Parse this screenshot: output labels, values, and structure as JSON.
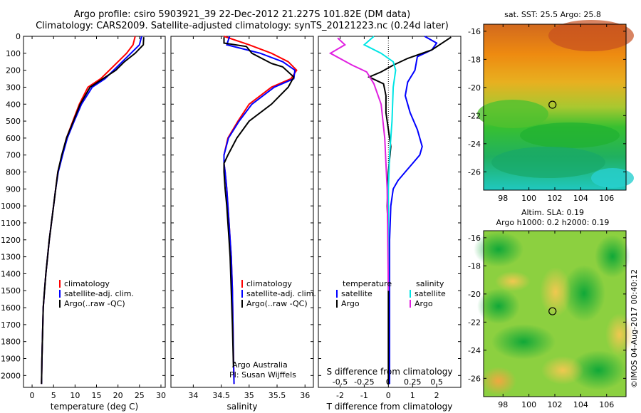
{
  "header": {
    "title_line1": "Argo profile: csiro 5903921_39 22-Dec-2012 21.227S 101.82E (DM data)",
    "title_line2": "Climatology: CARS2009. Satellite-adjusted climatology: synTS_20121223.nc (0.24d later)"
  },
  "colors": {
    "climatology": "#ff0000",
    "satellite": "#0000ff",
    "argo": "#000000",
    "sal_satellite": "#00e5e5",
    "sal_argo": "#e020e0"
  },
  "legend": {
    "climatology": "climatology",
    "satellite_adj": "satellite-adj. clim.",
    "argo": "Argo(..raw -QC)",
    "diff_temperature": "temperature",
    "diff_salinity": "salinity",
    "diff_satellite": "satellite",
    "diff_argo": "Argo"
  },
  "annotations": {
    "institution": "Argo Australia",
    "pi": "PI: Susan Wijffels"
  },
  "chart_data": [
    {
      "type": "line",
      "xlabel": "temperature (deg C)",
      "ylabel": "",
      "xlim": [
        -2,
        31
      ],
      "ylim": [
        2070,
        0
      ],
      "xticks": [
        0,
        5,
        10,
        15,
        20,
        25,
        30
      ],
      "yticks": [
        0,
        100,
        200,
        300,
        400,
        500,
        600,
        700,
        800,
        900,
        1000,
        1100,
        1200,
        1300,
        1400,
        1500,
        1600,
        1700,
        1800,
        1900,
        2000
      ],
      "series": [
        {
          "name": "climatology",
          "color": "#ff0000",
          "x": [
            24.0,
            23.5,
            22.0,
            20.0,
            18.0,
            16.0,
            13.0,
            11.0,
            9.5,
            8.0,
            7.0,
            6.0,
            5.5,
            5.0,
            4.5,
            4.0,
            3.6,
            3.2,
            2.9,
            2.6,
            2.4,
            2.3,
            2.2
          ],
          "y": [
            0,
            50,
            100,
            150,
            200,
            250,
            300,
            400,
            500,
            600,
            700,
            800,
            900,
            1000,
            1100,
            1200,
            1300,
            1400,
            1500,
            1600,
            1800,
            1900,
            2050
          ]
        },
        {
          "name": "satellite-adj. clim.",
          "color": "#0000ff",
          "x": [
            25.5,
            25.0,
            23.0,
            21.0,
            19.0,
            17.0,
            14.0,
            11.5,
            9.8,
            8.2,
            7.1,
            6.1,
            5.5,
            5.0,
            4.5,
            4.0,
            3.6,
            3.2,
            2.9,
            2.6,
            2.4,
            2.3,
            2.2
          ],
          "y": [
            0,
            50,
            100,
            150,
            200,
            250,
            300,
            400,
            500,
            600,
            700,
            800,
            900,
            1000,
            1100,
            1200,
            1300,
            1400,
            1500,
            1600,
            1800,
            1900,
            2050
          ]
        },
        {
          "name": "Argo(..raw -QC)",
          "color": "#000000",
          "x": [
            26.0,
            25.9,
            24.0,
            21.5,
            19.5,
            16.5,
            13.5,
            11.2,
            9.6,
            8.0,
            6.9,
            6.0,
            5.5,
            5.0,
            4.5,
            4.0,
            3.6,
            3.2,
            2.9,
            2.6,
            2.4,
            2.3,
            2.2
          ],
          "y": [
            5,
            50,
            100,
            150,
            200,
            250,
            300,
            400,
            500,
            600,
            700,
            800,
            900,
            1000,
            1100,
            1200,
            1300,
            1400,
            1500,
            1600,
            1800,
            1900,
            2050
          ]
        }
      ]
    },
    {
      "type": "line",
      "xlabel": "salinity",
      "ylabel": "",
      "xlim": [
        33.6,
        36.15
      ],
      "ylim": [
        2070,
        0
      ],
      "xticks": [
        34,
        34.5,
        35,
        35.5,
        36
      ],
      "series": [
        {
          "name": "climatology",
          "color": "#ff0000",
          "x": [
            34.55,
            35.0,
            35.4,
            35.7,
            35.85,
            35.75,
            35.4,
            35.0,
            34.8,
            34.62,
            34.55,
            34.55,
            34.57,
            34.6,
            34.62,
            34.64,
            34.66,
            34.68,
            34.7,
            34.71,
            34.72,
            34.73
          ],
          "y": [
            0,
            50,
            100,
            150,
            200,
            250,
            300,
            400,
            500,
            600,
            700,
            750,
            800,
            900,
            1000,
            1100,
            1200,
            1300,
            1500,
            1700,
            1900,
            2050
          ]
        },
        {
          "name": "satellite-adj. clim.",
          "color": "#0000ff",
          "x": [
            34.65,
            34.6,
            35.2,
            35.6,
            35.82,
            35.8,
            35.45,
            35.05,
            34.82,
            34.63,
            34.55,
            34.55,
            34.57,
            34.6,
            34.62,
            34.64,
            34.66,
            34.68,
            34.7,
            34.71,
            34.72,
            34.73
          ],
          "y": [
            0,
            50,
            100,
            150,
            200,
            250,
            300,
            400,
            500,
            600,
            700,
            750,
            800,
            900,
            1000,
            1100,
            1200,
            1300,
            1500,
            1700,
            1900,
            2050
          ]
        },
        {
          "name": "Argo(..raw -QC)",
          "color": "#000000",
          "x": [
            34.55,
            34.55,
            34.95,
            35.05,
            35.4,
            35.6,
            35.8,
            35.7,
            35.4,
            35.0,
            34.78,
            34.62,
            34.55,
            34.55,
            34.57,
            34.6,
            34.62,
            34.64,
            34.66,
            34.68,
            34.7,
            34.72
          ],
          "y": [
            5,
            40,
            60,
            100,
            160,
            180,
            240,
            300,
            400,
            500,
            600,
            700,
            750,
            800,
            900,
            1000,
            1100,
            1200,
            1300,
            1500,
            1700,
            1950
          ]
        }
      ]
    },
    {
      "type": "line",
      "xlabel": "T difference from climatology",
      "xlabel_top": "S difference from climatology",
      "xlim": [
        -2.9,
        3.0
      ],
      "ylim": [
        2070,
        0
      ],
      "xticks": [
        -2,
        -1,
        0,
        1,
        2
      ],
      "xticks_top": [
        -0.5,
        -0.25,
        0,
        0.25,
        0.5
      ],
      "series": [
        {
          "name": "temperature satellite",
          "color": "#0000ff",
          "x": [
            1.5,
            2.0,
            1.8,
            1.2,
            1.1,
            0.8,
            0.7,
            0.9,
            1.2,
            1.4,
            1.3,
            1.0,
            0.7,
            0.4,
            0.2,
            0.1,
            0.05,
            0.05,
            0.05
          ],
          "y": [
            0,
            40,
            80,
            120,
            200,
            270,
            350,
            450,
            550,
            650,
            700,
            750,
            800,
            850,
            900,
            1000,
            1200,
            1600,
            2050
          ]
        },
        {
          "name": "temperature Argo",
          "color": "#000000",
          "x": [
            2.6,
            1.8,
            0.8,
            0.2,
            -0.3,
            -0.8,
            -0.2,
            -0.1,
            -0.1,
            0.0,
            0.1,
            0.0,
            -0.05,
            0.0,
            0.0,
            0.0,
            0.0
          ],
          "y": [
            5,
            80,
            130,
            170,
            210,
            240,
            280,
            350,
            450,
            550,
            650,
            800,
            1000,
            1200,
            1500,
            1800,
            2050
          ]
        },
        {
          "name": "salinity satellite",
          "color": "#00e5e5",
          "x": [
            -0.6,
            -1.0,
            -0.3,
            0.2,
            0.3,
            0.2,
            0.15,
            0.05,
            0.0,
            0.0,
            0.0
          ],
          "y": [
            0,
            50,
            100,
            150,
            200,
            300,
            500,
            700,
            900,
            1200,
            1500
          ]
        },
        {
          "name": "salinity Argo",
          "color": "#e020e0",
          "x": [
            -2.1,
            -1.8,
            -2.4,
            -1.5,
            -0.9,
            -0.6,
            -0.3,
            -0.15,
            -0.05,
            0.0
          ],
          "y": [
            10,
            50,
            100,
            170,
            210,
            280,
            400,
            600,
            900,
            1500
          ]
        }
      ]
    }
  ],
  "maps": [
    {
      "type": "heatmap",
      "title": "sat. SST: 25.5 Argo: 25.8",
      "xlim": [
        96.5,
        107.5
      ],
      "ylim": [
        -27.3,
        -15.5
      ],
      "xticks": [
        98,
        100,
        102,
        104,
        106
      ],
      "yticks": [
        -16,
        -18,
        -20,
        -22,
        -24,
        -26
      ],
      "marker": {
        "lon": 101.82,
        "lat": -21.227
      }
    },
    {
      "type": "heatmap",
      "title": "Altim. SLA: 0.19",
      "title_line2": "Argo h1000: 0.2 h2000: 0.19",
      "xlim": [
        96.5,
        107.5
      ],
      "ylim": [
        -27.3,
        -15.5
      ],
      "xticks": [
        98,
        100,
        102,
        104,
        106
      ],
      "yticks": [
        -16,
        -18,
        -20,
        -22,
        -24,
        -26
      ],
      "marker": {
        "lon": 101.82,
        "lat": -21.227
      }
    }
  ],
  "credit": "©IMOS 04-Aug-2017 00:40:12"
}
